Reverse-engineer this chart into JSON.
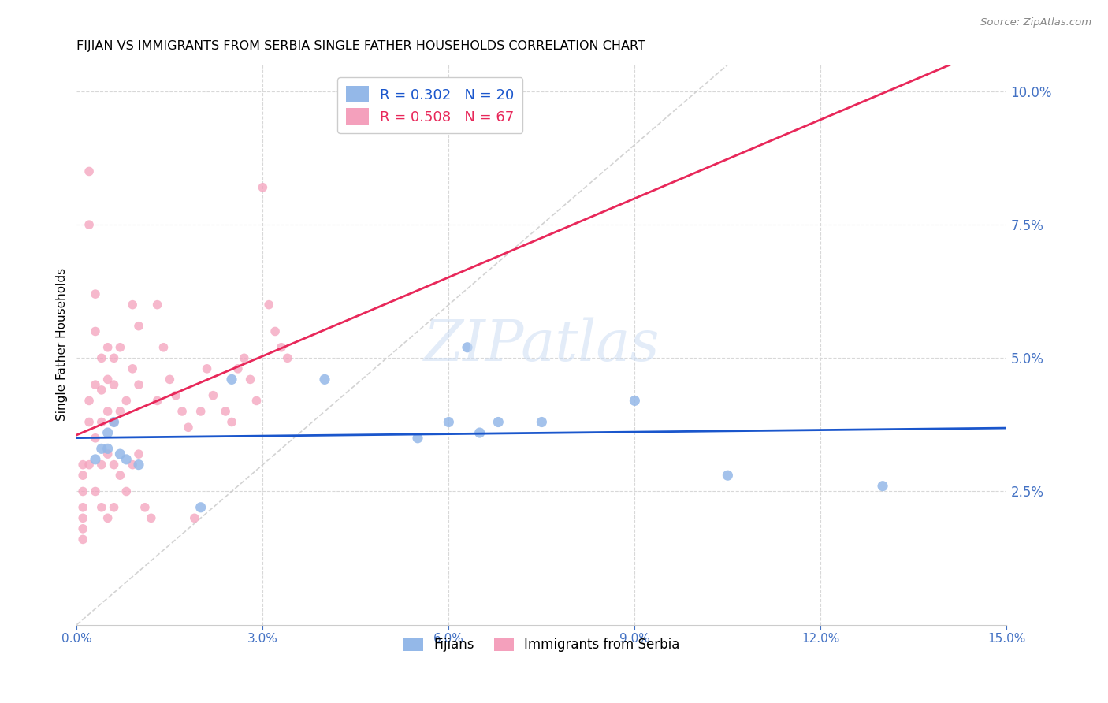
{
  "title": "FIJIAN VS IMMIGRANTS FROM SERBIA SINGLE FATHER HOUSEHOLDS CORRELATION CHART",
  "source": "Source: ZipAtlas.com",
  "ylabel_left": "Single Father Households",
  "legend_labels": [
    "Fijians",
    "Immigrants from Serbia"
  ],
  "R_fijian": 0.302,
  "N_fijian": 20,
  "R_serbia": 0.508,
  "N_serbia": 67,
  "xlim": [
    0.0,
    0.15
  ],
  "ylim": [
    0.0,
    0.105
  ],
  "x_ticks": [
    0.0,
    0.03,
    0.06,
    0.09,
    0.12,
    0.15
  ],
  "y_ticks_right": [
    0.025,
    0.05,
    0.075,
    0.1
  ],
  "color_fijian": "#94b8e8",
  "color_serbia": "#f4a0bc",
  "color_line_fijian": "#1a56cc",
  "color_line_serbia": "#e8285a",
  "color_diagonal": "#c8c8c8",
  "color_grid": "#d8d8d8",
  "color_axis_ticks": "#4472c4",
  "watermark": "ZIPatlas",
  "fijian_x": [
    0.003,
    0.004,
    0.005,
    0.005,
    0.006,
    0.007,
    0.008,
    0.01,
    0.02,
    0.025,
    0.04,
    0.055,
    0.06,
    0.063,
    0.065,
    0.068,
    0.075,
    0.09,
    0.105,
    0.13
  ],
  "fijian_y": [
    0.031,
    0.033,
    0.033,
    0.036,
    0.038,
    0.032,
    0.031,
    0.03,
    0.022,
    0.046,
    0.046,
    0.035,
    0.038,
    0.052,
    0.036,
    0.038,
    0.038,
    0.042,
    0.028,
    0.026
  ],
  "serbia_x": [
    0.001,
    0.001,
    0.001,
    0.001,
    0.001,
    0.001,
    0.001,
    0.002,
    0.002,
    0.002,
    0.002,
    0.002,
    0.003,
    0.003,
    0.003,
    0.003,
    0.003,
    0.004,
    0.004,
    0.004,
    0.004,
    0.004,
    0.005,
    0.005,
    0.005,
    0.005,
    0.005,
    0.006,
    0.006,
    0.006,
    0.006,
    0.006,
    0.007,
    0.007,
    0.007,
    0.008,
    0.008,
    0.009,
    0.009,
    0.009,
    0.01,
    0.01,
    0.01,
    0.011,
    0.012,
    0.013,
    0.013,
    0.014,
    0.015,
    0.016,
    0.017,
    0.018,
    0.019,
    0.02,
    0.021,
    0.022,
    0.024,
    0.025,
    0.026,
    0.027,
    0.028,
    0.029,
    0.03,
    0.031,
    0.032,
    0.033,
    0.034
  ],
  "serbia_y": [
    0.03,
    0.028,
    0.025,
    0.022,
    0.02,
    0.018,
    0.016,
    0.085,
    0.075,
    0.042,
    0.038,
    0.03,
    0.062,
    0.055,
    0.045,
    0.035,
    0.025,
    0.05,
    0.044,
    0.038,
    0.03,
    0.022,
    0.052,
    0.046,
    0.04,
    0.032,
    0.02,
    0.05,
    0.045,
    0.038,
    0.03,
    0.022,
    0.052,
    0.04,
    0.028,
    0.042,
    0.025,
    0.06,
    0.048,
    0.03,
    0.056,
    0.045,
    0.032,
    0.022,
    0.02,
    0.06,
    0.042,
    0.052,
    0.046,
    0.043,
    0.04,
    0.037,
    0.02,
    0.04,
    0.048,
    0.043,
    0.04,
    0.038,
    0.048,
    0.05,
    0.046,
    0.042,
    0.082,
    0.06,
    0.055,
    0.052,
    0.05
  ]
}
